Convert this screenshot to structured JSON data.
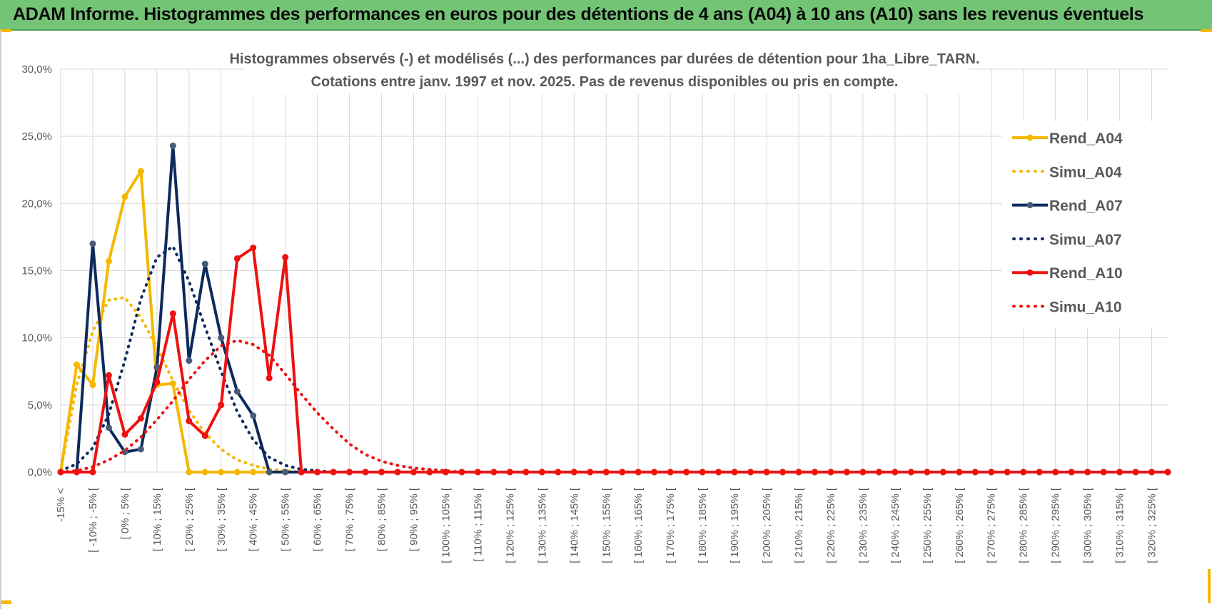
{
  "banner": {
    "title": "ADAM Informe. Histogrammes des performances en euros pour des détentions de 4 ans (A04) à 10 ans (A10) sans les revenus éventuels"
  },
  "colors": {
    "banner_bg": "#74c476",
    "a04": "#f5b800",
    "a07": "#0d2a5c",
    "a10": "#ee1111",
    "grid": "#d9d9d9",
    "text": "#595959"
  },
  "chart_data": {
    "type": "line",
    "title_lines": [
      "Histogrammes observés (-) et modélisés (...) des performances par durées de détention pour 1ha_Libre_TARN.",
      "Cotations entre janv. 1997 et nov. 2025. Pas de revenus disponibles ou pris en compte."
    ],
    "xlabel": "",
    "ylabel": "",
    "ylim": [
      0,
      30
    ],
    "y_ticks": [
      "0,0%",
      "5,0%",
      "10,0%",
      "15,0%",
      "20,0%",
      "25,0%",
      "30,0%"
    ],
    "grid": "on",
    "legend_position": "right",
    "x_tick_labels": [
      "-15% <",
      "[ -10% ; -5% [",
      "[ 0% ; 5% [",
      "[ 10% ; 15% [",
      "[ 20% ; 25% [",
      "[ 30% ; 35% [",
      "[ 40% ; 45% [",
      "[ 50% ; 55% [",
      "[ 60% ; 65% [",
      "[ 70% ; 75% [",
      "[ 80% ; 85% [",
      "[ 90% ; 95% [",
      "[ 100% ; 105% [",
      "[ 110% ; 115% [",
      "[ 120% ; 125% [",
      "[ 130% ; 135% [",
      "[ 140% ; 145% [",
      "[ 150% ; 155% [",
      "[ 160% ; 165% [",
      "[ 170% ; 175% [",
      "[ 180% ; 185% [",
      "[ 190% ; 195% [",
      "[ 200% ; 205% [",
      "[ 210% ; 215% [",
      "[ 220% ; 225% [",
      "[ 230% ; 235% [",
      "[ 240% ; 245% [",
      "[ 250% ; 255% [",
      "[ 260% ; 265% [",
      "[ 270% ; 275% [",
      "[ 280% ; 285% [",
      "[ 290% ; 295% [",
      "[ 300% ; 305% [",
      "[ 310% ; 315% [",
      "[ 320% ; 325% ["
    ],
    "series": [
      {
        "name": "Rend_A04",
        "style": "solid",
        "color": "#f5b800",
        "values": [
          0,
          8,
          6.5,
          15.7,
          20.5,
          22.4,
          6.5,
          6.6,
          0,
          0,
          0,
          0,
          0,
          0,
          0,
          0,
          0,
          0,
          0,
          0,
          0,
          0,
          0,
          0,
          0,
          0,
          0,
          0,
          0,
          0,
          0,
          0,
          0,
          0,
          0,
          0,
          0,
          0,
          0,
          0,
          0,
          0,
          0,
          0,
          0,
          0,
          0,
          0,
          0,
          0,
          0,
          0,
          0,
          0,
          0,
          0,
          0,
          0,
          0,
          0,
          0,
          0,
          0,
          0,
          0,
          0,
          0,
          0,
          0,
          0
        ]
      },
      {
        "name": "Simu_A04",
        "style": "dotted",
        "color": "#f5b800",
        "values": [
          0,
          6.5,
          10.5,
          12.8,
          13,
          11.5,
          9.3,
          6.8,
          4.6,
          2.9,
          1.7,
          0.9,
          0.5,
          0.2,
          0.1,
          0,
          0,
          0,
          0,
          0,
          0,
          0,
          0,
          0,
          0,
          0,
          0,
          0,
          0,
          0,
          0,
          0,
          0,
          0,
          0,
          0,
          0,
          0,
          0,
          0,
          0,
          0,
          0,
          0,
          0,
          0,
          0,
          0,
          0,
          0,
          0,
          0,
          0,
          0,
          0,
          0,
          0,
          0,
          0,
          0,
          0,
          0,
          0,
          0,
          0,
          0,
          0,
          0,
          0,
          0
        ]
      },
      {
        "name": "Rend_A07",
        "style": "solid",
        "color": "#0d2a5c",
        "values": [
          0,
          0,
          17,
          3.3,
          1.5,
          1.7,
          7.8,
          24.3,
          8.3,
          15.5,
          10,
          6,
          4.2,
          0,
          0,
          0,
          0,
          0,
          0,
          0,
          0,
          0,
          0,
          0,
          0,
          0,
          0,
          0,
          0,
          0,
          0,
          0,
          0,
          0,
          0,
          0,
          0,
          0,
          0,
          0,
          0,
          0,
          0,
          0,
          0,
          0,
          0,
          0,
          0,
          0,
          0,
          0,
          0,
          0,
          0,
          0,
          0,
          0,
          0,
          0,
          0,
          0,
          0,
          0,
          0,
          0,
          0,
          0,
          0,
          0
        ]
      },
      {
        "name": "Simu_A07",
        "style": "dotted",
        "color": "#0d2a5c",
        "values": [
          0.1,
          0.6,
          1.8,
          4.3,
          8.3,
          12.9,
          16,
          16.8,
          14.2,
          10.8,
          7.5,
          4.5,
          2.4,
          1.1,
          0.5,
          0.2,
          0.1,
          0,
          0,
          0,
          0,
          0,
          0,
          0,
          0,
          0,
          0,
          0,
          0,
          0,
          0,
          0,
          0,
          0,
          0,
          0,
          0,
          0,
          0,
          0,
          0,
          0,
          0,
          0,
          0,
          0,
          0,
          0,
          0,
          0,
          0,
          0,
          0,
          0,
          0,
          0,
          0,
          0,
          0,
          0,
          0,
          0,
          0,
          0,
          0,
          0,
          0,
          0,
          0,
          0
        ]
      },
      {
        "name": "Rend_A10",
        "style": "solid",
        "color": "#ee1111",
        "values": [
          0,
          0,
          0,
          7.2,
          2.8,
          4,
          6.7,
          11.8,
          3.8,
          2.7,
          5,
          15.9,
          16.7,
          7,
          16,
          0,
          0,
          0,
          0,
          0,
          0,
          0,
          0,
          0,
          0,
          0,
          0,
          0,
          0,
          0,
          0,
          0,
          0,
          0,
          0,
          0,
          0,
          0,
          0,
          0,
          0,
          0,
          0,
          0,
          0,
          0,
          0,
          0,
          0,
          0,
          0,
          0,
          0,
          0,
          0,
          0,
          0,
          0,
          0,
          0,
          0,
          0,
          0,
          0,
          0,
          0,
          0,
          0,
          0,
          0
        ]
      },
      {
        "name": "Simu_A10",
        "style": "dotted",
        "color": "#ee1111",
        "values": [
          0,
          0.1,
          0.4,
          0.9,
          1.6,
          2.6,
          3.9,
          5.3,
          6.9,
          8.3,
          9.4,
          9.8,
          9.5,
          8.7,
          7.3,
          5.8,
          4.4,
          3.2,
          2.1,
          1.3,
          0.8,
          0.5,
          0.3,
          0.2,
          0.1,
          0,
          0,
          0,
          0,
          0,
          0,
          0,
          0,
          0,
          0,
          0,
          0,
          0,
          0,
          0,
          0,
          0,
          0,
          0,
          0,
          0,
          0,
          0,
          0,
          0,
          0,
          0,
          0,
          0,
          0,
          0,
          0,
          0,
          0,
          0,
          0,
          0,
          0,
          0,
          0,
          0,
          0,
          0,
          0,
          0
        ]
      }
    ]
  }
}
